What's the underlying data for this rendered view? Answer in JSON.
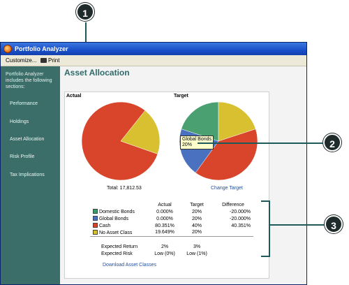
{
  "window": {
    "title": "Portfolio Analyzer",
    "menu": {
      "customize": "Customize...",
      "print": "Print"
    }
  },
  "sidebar": {
    "intro": "Portfolio Analyzer includes the following sections:",
    "items": [
      {
        "label": "Performance"
      },
      {
        "label": "Holdings"
      },
      {
        "label": "Asset Allocation"
      },
      {
        "label": "Risk Profile"
      },
      {
        "label": "Tax Implications"
      }
    ]
  },
  "main": {
    "title": "Asset Allocation",
    "actual_label": "Actual",
    "target_label": "Target",
    "total": "Total: 17,812.53",
    "change_target": "Change Target",
    "download": "Download Asset Classes",
    "tooltip": {
      "name": "Global Bonds",
      "value": "20%"
    }
  },
  "table": {
    "headers": [
      "Actual",
      "Target",
      "Difference"
    ],
    "rows": [
      {
        "name": "Domestic Bonds",
        "color": "#3a9a6a",
        "actual": "0.000%",
        "target": "20%",
        "diff": "-20.000%"
      },
      {
        "name": "Global Bonds",
        "color": "#4a6fc0",
        "actual": "0.000%",
        "target": "20%",
        "diff": "-20.000%"
      },
      {
        "name": "Cash",
        "color": "#d8412a",
        "actual": "80.351%",
        "target": "40%",
        "diff": "40.351%"
      },
      {
        "name": "No Asset Class",
        "color": "#d8c028",
        "actual": "19.649%",
        "target": "20%",
        "diff": ""
      }
    ],
    "summary": [
      {
        "name": "Expected Return",
        "actual": "2%",
        "target": "3%"
      },
      {
        "name": "Expected Risk",
        "actual": "Low (0%)",
        "target": "Low (1%)"
      }
    ]
  },
  "pies": {
    "actual": [
      {
        "name": "Cash",
        "value": 80.351,
        "color": "#d8452a"
      },
      {
        "name": "No Asset Class",
        "value": 19.649,
        "color": "#d8c030"
      }
    ],
    "target": [
      {
        "name": "Domestic Bonds",
        "value": 20,
        "color": "#4aa070"
      },
      {
        "name": "No Asset Class",
        "value": 20,
        "color": "#d8c030"
      },
      {
        "name": "Cash",
        "value": 40,
        "color": "#d8452a"
      },
      {
        "name": "Global Bonds",
        "value": 20,
        "color": "#4a70c0"
      }
    ]
  },
  "callouts": [
    "1",
    "2",
    "3"
  ]
}
